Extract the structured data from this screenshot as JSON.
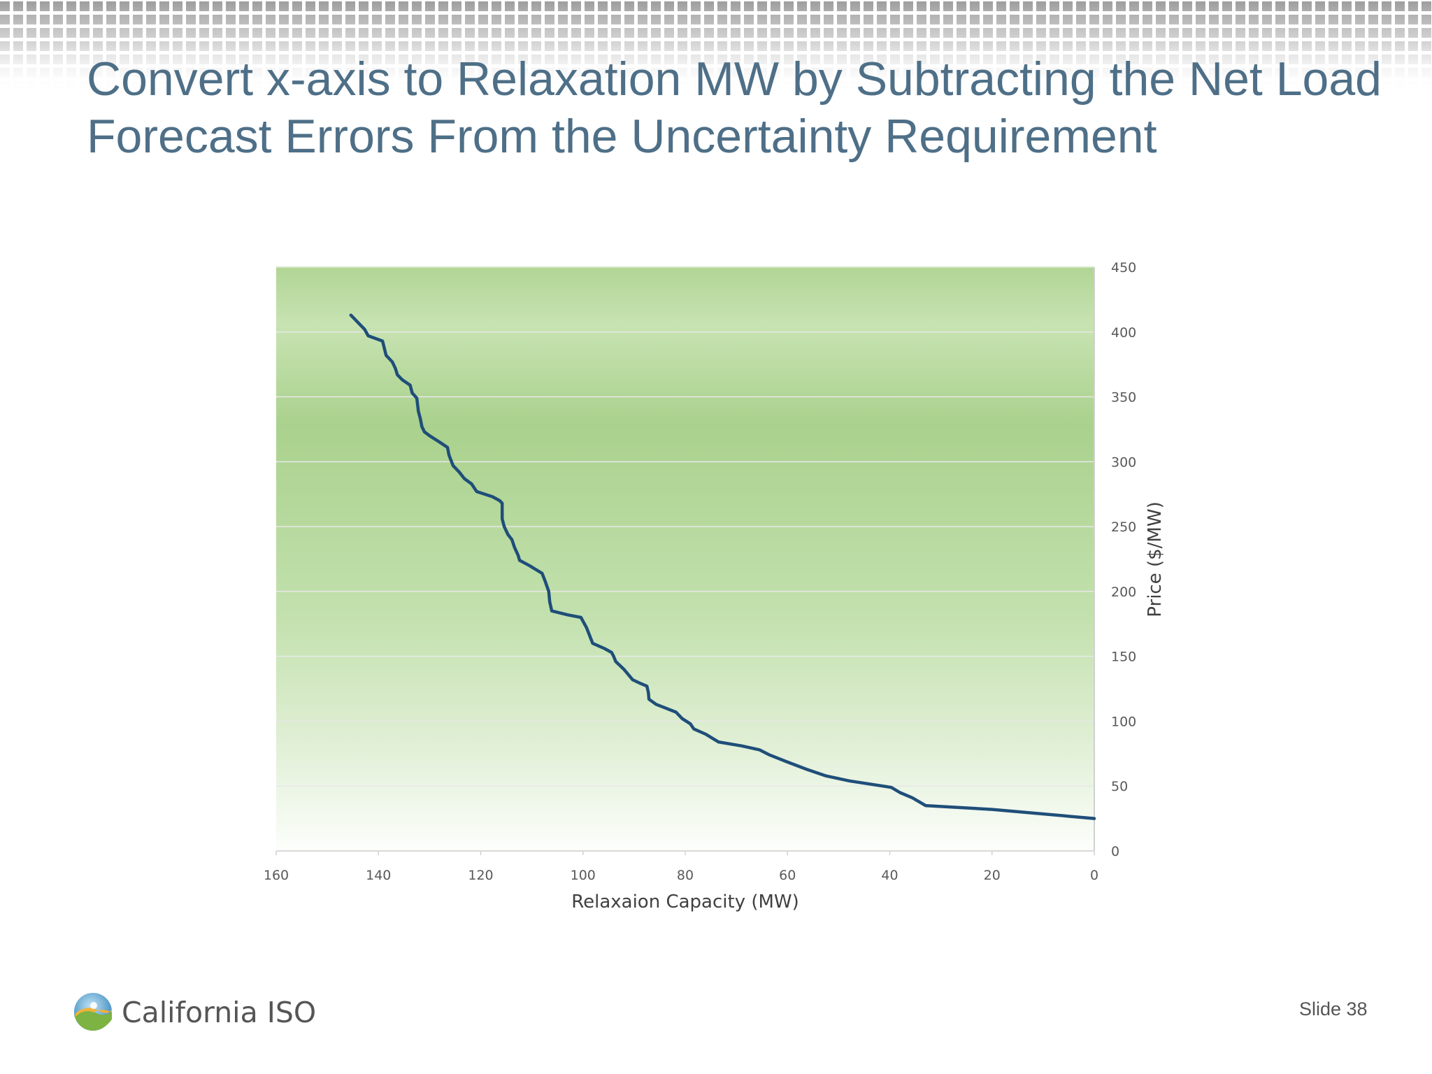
{
  "slide": {
    "title": "Convert x-axis to Relaxation MW by Subtracting the Net Load\nForecast Errors From the Uncertainty Requirement",
    "number_label": "Slide 38",
    "logo_text": "California ISO"
  },
  "chart_data": {
    "type": "line",
    "title": "",
    "xlabel": "Relaxaion Capacity (MW)",
    "ylabel": "Price ($/MW)",
    "xlim": [
      160,
      0
    ],
    "x_reversed": true,
    "ylim": [
      0,
      450
    ],
    "xticks": [
      "160",
      "140",
      "120",
      "100",
      "80",
      "60",
      "40",
      "20",
      "0"
    ],
    "yticks": [
      "0",
      "50",
      "100",
      "150",
      "200",
      "250",
      "300",
      "350",
      "400",
      "450"
    ],
    "y_axis_side": "right",
    "grid": true,
    "legend": "none",
    "series": [
      {
        "color": "#1f4e79",
        "points": [
          [
            145.4,
            413
          ],
          [
            142.7,
            402
          ],
          [
            142.0,
            397
          ],
          [
            139.2,
            393
          ],
          [
            138.5,
            382
          ],
          [
            137.3,
            377
          ],
          [
            136.7,
            372
          ],
          [
            136.3,
            367
          ],
          [
            135.3,
            363
          ],
          [
            133.8,
            359
          ],
          [
            133.4,
            353
          ],
          [
            132.5,
            349
          ],
          [
            132.2,
            339
          ],
          [
            131.8,
            333
          ],
          [
            131.5,
            327
          ],
          [
            131.0,
            323
          ],
          [
            130.0,
            320
          ],
          [
            128.0,
            315
          ],
          [
            126.5,
            311
          ],
          [
            126.2,
            305
          ],
          [
            125.4,
            297
          ],
          [
            124.2,
            292
          ],
          [
            123.2,
            287
          ],
          [
            121.8,
            283
          ],
          [
            120.8,
            277
          ],
          [
            117.7,
            273
          ],
          [
            116.3,
            270
          ],
          [
            115.8,
            268
          ],
          [
            115.8,
            256
          ],
          [
            115.4,
            250
          ],
          [
            114.7,
            244
          ],
          [
            113.9,
            240
          ],
          [
            113.4,
            234
          ],
          [
            112.7,
            228
          ],
          [
            112.4,
            224
          ],
          [
            110.5,
            220
          ],
          [
            108.0,
            214
          ],
          [
            107.4,
            208
          ],
          [
            106.7,
            200
          ],
          [
            106.5,
            192
          ],
          [
            106.1,
            185
          ],
          [
            103.0,
            182
          ],
          [
            100.4,
            180
          ],
          [
            99.3,
            172
          ],
          [
            99.0,
            169
          ],
          [
            98.3,
            162
          ],
          [
            98.1,
            160
          ],
          [
            95.8,
            156
          ],
          [
            94.4,
            153
          ],
          [
            94.0,
            150
          ],
          [
            93.6,
            146
          ],
          [
            92.0,
            140
          ],
          [
            90.3,
            132
          ],
          [
            88.7,
            129
          ],
          [
            87.5,
            127
          ],
          [
            87.2,
            122
          ],
          [
            87.1,
            117
          ],
          [
            85.7,
            113
          ],
          [
            81.8,
            107
          ],
          [
            80.6,
            102
          ],
          [
            79.0,
            98
          ],
          [
            78.3,
            94
          ],
          [
            76.0,
            90
          ],
          [
            73.5,
            84
          ],
          [
            69.0,
            81
          ],
          [
            65.5,
            78
          ],
          [
            63.5,
            74
          ],
          [
            60.3,
            69
          ],
          [
            56.3,
            63
          ],
          [
            52.6,
            58
          ],
          [
            47.9,
            54
          ],
          [
            39.7,
            49
          ],
          [
            38.0,
            45
          ],
          [
            35.6,
            41
          ],
          [
            33.0,
            35
          ],
          [
            20.0,
            32
          ],
          [
            0,
            25
          ]
        ]
      }
    ]
  },
  "colors": {
    "title": "#4e6f87",
    "line": "#1f4e79",
    "plot_green": "#a9d18e",
    "plot_light": "#ffffff",
    "gridline": "#e8e8e8"
  }
}
